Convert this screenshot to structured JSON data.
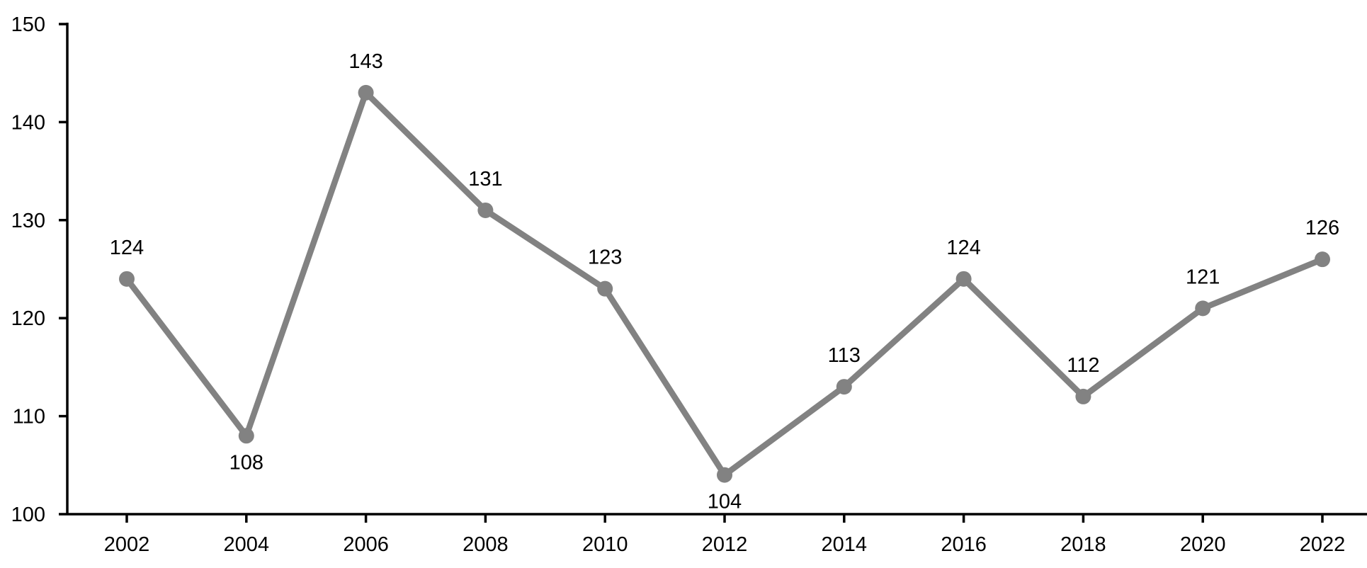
{
  "chart_data": {
    "type": "line",
    "title": "",
    "xlabel": "",
    "ylabel": "",
    "grid": false,
    "legend": false,
    "categories": [
      "2002",
      "2004",
      "2006",
      "2008",
      "2010",
      "2012",
      "2014",
      "2016",
      "2018",
      "2020",
      "2022"
    ],
    "values": [
      124,
      108,
      143,
      131,
      123,
      104,
      113,
      124,
      112,
      121,
      126
    ],
    "data_labels": [
      "124",
      "108",
      "143",
      "131",
      "123",
      "104",
      "113",
      "124",
      "112",
      "121",
      "126"
    ],
    "label_positions": [
      "above",
      "below",
      "above",
      "above",
      "above",
      "below",
      "above",
      "above",
      "above",
      "above",
      "above"
    ],
    "y_axis": {
      "range": [
        100,
        150
      ],
      "ticks": [
        "100",
        "110",
        "120",
        "130",
        "140",
        "150"
      ],
      "tick_values": [
        100,
        110,
        120,
        130,
        140,
        150
      ]
    },
    "colors": {
      "line": "#828282",
      "marker": "#828282",
      "axis": "#000000",
      "text": "#000000",
      "background": "#ffffff"
    }
  }
}
